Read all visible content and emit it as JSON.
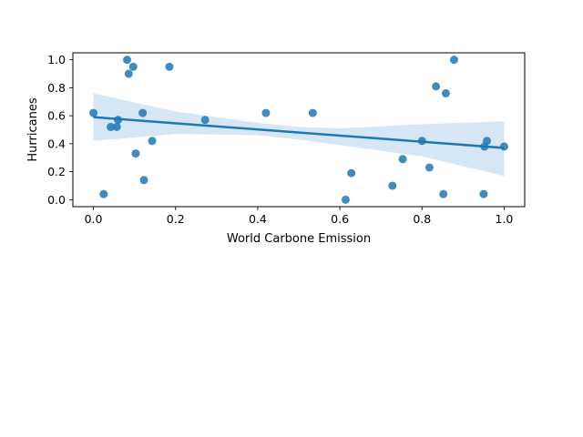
{
  "chart_data": {
    "type": "scatter",
    "title": "",
    "xlabel": "World Carbone Emission",
    "ylabel": "Hurricanes",
    "xlim": [
      -0.05,
      1.05
    ],
    "ylim": [
      -0.05,
      1.05
    ],
    "xticks": [
      "0.0",
      "0.2",
      "0.4",
      "0.6",
      "0.8",
      "1.0"
    ],
    "yticks": [
      "0.0",
      "0.2",
      "0.4",
      "0.6",
      "0.8",
      "1.0"
    ],
    "grid": false,
    "legend": "none",
    "series": [
      {
        "kind": "points",
        "x": [
          0.0,
          0.025,
          0.042,
          0.057,
          0.06,
          0.082,
          0.086,
          0.097,
          0.103,
          0.12,
          0.123,
          0.143,
          0.185,
          0.272,
          0.42,
          0.534,
          0.614,
          0.628,
          0.728,
          0.753,
          0.8,
          0.818,
          0.834,
          0.852,
          0.858,
          0.878,
          0.95,
          0.952,
          0.958,
          1.0
        ],
        "y": [
          0.62,
          0.04,
          0.52,
          0.52,
          0.57,
          1.0,
          0.9,
          0.95,
          0.33,
          0.62,
          0.14,
          0.42,
          0.95,
          0.57,
          0.62,
          0.62,
          0.0,
          0.19,
          0.1,
          0.29,
          0.42,
          0.23,
          0.81,
          0.04,
          0.76,
          1.0,
          0.04,
          0.38,
          0.42,
          0.38
        ]
      },
      {
        "kind": "regression-line",
        "x": [
          0.0,
          1.0
        ],
        "y": [
          0.59,
          0.37
        ]
      },
      {
        "kind": "confidence-band",
        "x": [
          0.0,
          0.2,
          0.4,
          0.5,
          0.6,
          0.8,
          1.0
        ],
        "lower": [
          0.42,
          0.47,
          0.46,
          0.43,
          0.39,
          0.31,
          0.17
        ],
        "upper": [
          0.76,
          0.63,
          0.55,
          0.52,
          0.51,
          0.54,
          0.56
        ]
      }
    ],
    "colors": {
      "points": "#1f77b4",
      "line": "#1f77b4",
      "band": "#c6dbef"
    }
  }
}
